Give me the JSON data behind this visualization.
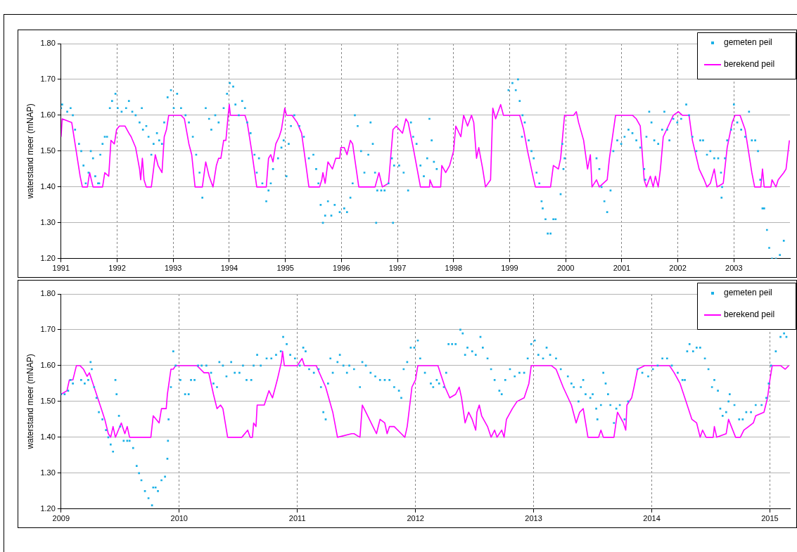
{
  "chart_data": [
    {
      "type": "line",
      "ylabel": "waterstand meer (mNAP)",
      "xlim": [
        1991,
        2004
      ],
      "xticks": [
        1991,
        1992,
        1993,
        1994,
        1995,
        1996,
        1997,
        1998,
        1999,
        2000,
        2001,
        2002,
        2003
      ],
      "ylim": [
        1.2,
        1.8
      ],
      "yticks": [
        {
          "value": 1.2,
          "label": "1.20"
        },
        {
          "value": 1.3,
          "label": "1.30"
        },
        {
          "value": 1.4,
          "label": "1.40"
        },
        {
          "value": 1.5,
          "label": "1.50"
        },
        {
          "value": 1.6,
          "label": "1.60"
        },
        {
          "value": 1.7,
          "label": "1.70"
        },
        {
          "value": 1.8,
          "label": "1.80"
        }
      ],
      "grid": true,
      "legend": "top right",
      "series": [
        {
          "name": "gemeten peil",
          "type": "scatter",
          "color": "#1ab0e6",
          "marker": "square",
          "x": [
            1991.0,
            1991.02,
            1991.11,
            1991.17,
            1991.21,
            1991.25,
            1991.32,
            1991.36,
            1991.4,
            1991.44,
            1991.49,
            1991.53,
            1991.57,
            1991.61,
            1991.66,
            1991.68,
            1991.7,
            1991.74,
            1991.78,
            1991.82,
            1991.87,
            1991.91,
            1991.97,
            1992.01,
            1992.08,
            1992.16,
            1992.21,
            1992.27,
            1992.33,
            1992.4,
            1992.44,
            1992.46,
            1992.52,
            1992.56,
            1992.61,
            1992.65,
            1992.71,
            1992.75,
            1992.8,
            1992.84,
            1992.9,
            1992.96,
            1993.01,
            1993.07,
            1993.14,
            1993.22,
            1993.28,
            1993.35,
            1993.41,
            1993.47,
            1993.52,
            1993.58,
            1993.64,
            1993.68,
            1993.75,
            1993.81,
            1993.9,
            1993.96,
            1994.01,
            1994.07,
            1994.11,
            1994.17,
            1994.23,
            1994.28,
            1994.32,
            1994.38,
            1994.45,
            1994.49,
            1994.53,
            1994.59,
            1994.66,
            1994.7,
            1994.74,
            1994.78,
            1994.87,
            1994.93,
            1994.97,
            1995.02,
            1995.06,
            1995.1,
            1995.16,
            1995.25,
            1995.33,
            1995.42,
            1995.5,
            1995.55,
            1995.59,
            1995.63,
            1995.67,
            1995.71,
            1995.76,
            1995.82,
            1995.88,
            1995.97,
            1996.05,
            1996.1,
            1996.16,
            1996.2,
            1996.24,
            1996.29,
            1996.35,
            1996.41,
            1996.48,
            1996.52,
            1996.56,
            1996.6,
            1996.62,
            1996.64,
            1996.71,
            1996.77,
            1996.84,
            1996.9,
            1996.92,
            1996.94,
            1997.03,
            1997.11,
            1997.19,
            1997.24,
            1997.28,
            1997.34,
            1997.41,
            1997.47,
            1997.53,
            1997.57,
            1997.61,
            1997.65,
            1997.7,
            1998.98,
            1999.05,
            1999.11,
            1999.15,
            1999.18,
            1999.22,
            1999.23,
            1999.27,
            1999.34,
            1999.39,
            1999.43,
            1999.48,
            1999.53,
            1999.57,
            1999.59,
            1999.64,
            1999.68,
            1999.73,
            1999.78,
            1999.82,
            1999.91,
            1999.94,
            1999.96,
            1999.98,
            2000.55,
            2000.6,
            2000.64,
            2000.69,
            2000.74,
            2000.8,
            2000.85,
            2000.92,
            2000.99,
            2001.05,
            2001.12,
            2001.19,
            2001.26,
            2001.33,
            2001.4,
            2001.42,
            2001.44,
            2001.49,
            2001.53,
            2001.58,
            2001.65,
            2001.72,
            2001.76,
            2001.81,
            2001.85,
            2001.92,
            2001.99,
            2002.06,
            2002.15,
            2002.2,
            2002.26,
            2002.33,
            2002.4,
            2002.45,
            2002.52,
            2002.58,
            2002.65,
            2002.72,
            2002.77,
            2002.78,
            2002.79,
            2002.84,
            2002.88,
            2002.95,
            2003.0,
            2003.06,
            2003.13,
            2003.2,
            2003.27,
            2003.32,
            2003.38,
            2003.43,
            2003.47,
            2003.51,
            2003.54,
            2003.59,
            2003.63,
            2003.68,
            2003.75,
            2003.82,
            2003.89
          ],
          "values": [
            1.62,
            1.63,
            1.61,
            1.62,
            1.6,
            1.56,
            1.52,
            1.5,
            1.46,
            1.41,
            1.44,
            1.5,
            1.48,
            1.43,
            1.41,
            1.41,
            1.49,
            1.52,
            1.54,
            1.54,
            1.62,
            1.64,
            1.66,
            1.62,
            1.61,
            1.62,
            1.64,
            1.61,
            1.6,
            1.58,
            1.62,
            1.56,
            1.57,
            1.54,
            1.49,
            1.52,
            1.55,
            1.53,
            1.52,
            1.58,
            1.65,
            1.67,
            1.62,
            1.66,
            1.62,
            1.6,
            1.58,
            1.54,
            1.49,
            1.44,
            1.37,
            1.62,
            1.59,
            1.56,
            1.6,
            1.58,
            1.62,
            1.66,
            1.69,
            1.68,
            1.63,
            1.6,
            1.64,
            1.62,
            1.58,
            1.55,
            1.49,
            1.44,
            1.48,
            1.41,
            1.36,
            1.39,
            1.41,
            1.45,
            1.48,
            1.51,
            1.53,
            1.43,
            1.52,
            1.57,
            1.6,
            1.57,
            1.54,
            1.48,
            1.49,
            1.45,
            1.41,
            1.35,
            1.3,
            1.32,
            1.36,
            1.32,
            1.35,
            1.33,
            1.34,
            1.33,
            1.37,
            1.41,
            1.6,
            1.57,
            1.5,
            1.44,
            1.49,
            1.58,
            1.52,
            1.44,
            1.3,
            1.39,
            1.39,
            1.39,
            1.41,
            1.48,
            1.3,
            1.46,
            1.46,
            1.44,
            1.39,
            1.58,
            1.54,
            1.52,
            1.46,
            1.43,
            1.48,
            1.59,
            1.53,
            1.47,
            1.45,
            1.67,
            1.69,
            1.67,
            1.7,
            1.64,
            1.54,
            1.6,
            1.58,
            1.53,
            1.5,
            1.48,
            1.44,
            1.41,
            1.36,
            1.34,
            1.31,
            1.27,
            1.27,
            1.31,
            1.31,
            1.38,
            1.52,
            1.45,
            1.48,
            1.48,
            1.45,
            1.4,
            1.36,
            1.33,
            1.39,
            1.5,
            1.53,
            1.52,
            1.54,
            1.56,
            1.55,
            1.53,
            1.51,
            1.45,
            1.42,
            1.54,
            1.61,
            1.58,
            1.53,
            1.52,
            1.56,
            1.61,
            1.56,
            1.53,
            1.59,
            1.58,
            1.59,
            1.63,
            1.6,
            1.54,
            1.5,
            1.53,
            1.53,
            1.49,
            1.5,
            1.48,
            1.48,
            1.44,
            1.37,
            1.4,
            1.48,
            1.53,
            1.56,
            1.63,
            1.58,
            1.56,
            1.54,
            1.61,
            1.53,
            1.53,
            1.5,
            1.42,
            1.34,
            1.34,
            1.28,
            1.23,
            1.2,
            1.2,
            1.21,
            1.25
          ]
        },
        {
          "name": "berekend peil",
          "type": "line",
          "color": "#ff00ff",
          "marker": "none",
          "line_style": "solid",
          "x": [
            1991.0,
            1991.02,
            1991.19,
            1991.25,
            1991.34,
            1991.38,
            1991.47,
            1991.51,
            1991.57,
            1991.74,
            1991.78,
            1991.85,
            1991.89,
            1991.95,
            1991.99,
            1992.04,
            1992.14,
            1992.21,
            1992.25,
            1992.33,
            1992.4,
            1992.42,
            1992.45,
            1992.48,
            1992.52,
            1992.61,
            1992.65,
            1992.68,
            1992.73,
            1992.8,
            1992.84,
            1992.88,
            1992.92,
            1993.14,
            1993.2,
            1993.28,
            1993.33,
            1993.39,
            1993.52,
            1993.58,
            1993.64,
            1993.71,
            1993.77,
            1993.81,
            1993.85,
            1993.9,
            1993.94,
            1993.98,
            1994.0,
            1994.02,
            1994.28,
            1994.32,
            1994.4,
            1994.49,
            1994.66,
            1994.7,
            1994.74,
            1994.78,
            1994.83,
            1994.89,
            1994.93,
            1994.99,
            1995.02,
            1995.12,
            1995.21,
            1995.29,
            1995.36,
            1995.42,
            1995.61,
            1995.65,
            1995.67,
            1995.71,
            1995.76,
            1995.84,
            1995.9,
            1995.97,
            1995.99,
            1996.05,
            1996.1,
            1996.16,
            1996.2,
            1996.31,
            1996.6,
            1996.67,
            1996.73,
            1996.84,
            1996.92,
            1996.98,
            1997.09,
            1997.15,
            1997.19,
            1997.28,
            1997.41,
            1997.57,
            1997.58,
            1997.63,
            1997.77,
            1997.79,
            1997.86,
            1997.93,
            1998.0,
            1998.04,
            1998.13,
            1998.18,
            1998.25,
            1998.32,
            1998.36,
            1998.41,
            1998.45,
            1998.52,
            1998.57,
            1998.66,
            1998.7,
            1998.75,
            1998.84,
            1998.89,
            1999.18,
            1999.25,
            1999.32,
            1999.43,
            1999.46,
            1999.73,
            1999.78,
            1999.87,
            1999.91,
            1999.98,
            2000.14,
            2000.19,
            2000.23,
            2000.32,
            2000.39,
            2000.44,
            2000.47,
            2000.55,
            2000.6,
            2000.74,
            2000.78,
            2000.89,
            2001.19,
            2001.26,
            2001.33,
            2001.4,
            2001.44,
            2001.51,
            2001.56,
            2001.6,
            2001.65,
            2001.69,
            2001.74,
            2001.83,
            2001.92,
            2002.01,
            2002.08,
            2002.2,
            2002.26,
            2002.38,
            2002.47,
            2002.52,
            2002.58,
            2002.65,
            2002.7,
            2002.81,
            2002.88,
            2002.97,
            2003.02,
            2003.11,
            2003.2,
            2003.32,
            2003.37,
            2003.48,
            2003.51,
            2003.54,
            2003.66,
            2003.68,
            2003.75,
            2003.79,
            2003.89,
            2003.93,
            2003.99
          ],
          "values": [
            1.54,
            1.59,
            1.58,
            1.52,
            1.43,
            1.4,
            1.4,
            1.44,
            1.4,
            1.4,
            1.44,
            1.43,
            1.53,
            1.52,
            1.56,
            1.57,
            1.57,
            1.55,
            1.54,
            1.51,
            1.45,
            1.42,
            1.48,
            1.42,
            1.4,
            1.4,
            1.45,
            1.49,
            1.46,
            1.44,
            1.54,
            1.56,
            1.6,
            1.6,
            1.59,
            1.52,
            1.49,
            1.4,
            1.4,
            1.47,
            1.43,
            1.4,
            1.46,
            1.48,
            1.48,
            1.53,
            1.53,
            1.6,
            1.63,
            1.6,
            1.6,
            1.58,
            1.5,
            1.4,
            1.4,
            1.48,
            1.49,
            1.47,
            1.52,
            1.54,
            1.56,
            1.62,
            1.6,
            1.6,
            1.58,
            1.55,
            1.47,
            1.4,
            1.4,
            1.42,
            1.44,
            1.41,
            1.47,
            1.45,
            1.48,
            1.48,
            1.51,
            1.51,
            1.49,
            1.53,
            1.52,
            1.4,
            1.4,
            1.44,
            1.4,
            1.41,
            1.56,
            1.57,
            1.55,
            1.59,
            1.58,
            1.51,
            1.4,
            1.4,
            1.42,
            1.4,
            1.4,
            1.46,
            1.44,
            1.46,
            1.5,
            1.57,
            1.54,
            1.6,
            1.57,
            1.6,
            1.58,
            1.48,
            1.51,
            1.45,
            1.4,
            1.42,
            1.62,
            1.59,
            1.63,
            1.6,
            1.6,
            1.56,
            1.5,
            1.42,
            1.4,
            1.4,
            1.46,
            1.45,
            1.48,
            1.6,
            1.6,
            1.61,
            1.58,
            1.53,
            1.45,
            1.49,
            1.4,
            1.42,
            1.4,
            1.42,
            1.48,
            1.6,
            1.6,
            1.59,
            1.57,
            1.42,
            1.4,
            1.43,
            1.4,
            1.43,
            1.4,
            1.45,
            1.54,
            1.57,
            1.6,
            1.61,
            1.6,
            1.6,
            1.53,
            1.45,
            1.42,
            1.4,
            1.41,
            1.45,
            1.4,
            1.41,
            1.51,
            1.58,
            1.6,
            1.6,
            1.56,
            1.44,
            1.4,
            1.4,
            1.45,
            1.4,
            1.4,
            1.42,
            1.4,
            1.42,
            1.44,
            1.45,
            1.53
          ]
        }
      ]
    },
    {
      "type": "line",
      "ylabel": "waterstand meer (mNAP)",
      "xlim": [
        2009,
        2015.17
      ],
      "xticks": [
        2009,
        2010,
        2011,
        2012,
        2013,
        2014,
        2015
      ],
      "ylim": [
        1.2,
        1.8
      ],
      "yticks": [
        {
          "value": 1.2,
          "label": "1.20"
        },
        {
          "value": 1.3,
          "label": "1.30"
        },
        {
          "value": 1.4,
          "label": "1.40"
        },
        {
          "value": 1.5,
          "label": "1.50"
        },
        {
          "value": 1.6,
          "label": "1.60"
        },
        {
          "value": 1.7,
          "label": "1.70"
        },
        {
          "value": 1.8,
          "label": "1.80"
        }
      ],
      "grid": true,
      "legend": "top right",
      "series": [
        {
          "name": "gemeten peil",
          "type": "scatter",
          "color": "#1ab0e6",
          "marker": "square",
          "x": [
            2009.0,
            2009.03,
            2009.06,
            2009.08,
            2009.1,
            2009.17,
            2009.2,
            2009.23,
            2009.25,
            2009.26,
            2009.28,
            2009.3,
            2009.32,
            2009.35,
            2009.38,
            2009.4,
            2009.42,
            2009.44,
            2009.46,
            2009.47,
            2009.49,
            2009.5,
            2009.53,
            2009.56,
            2009.58,
            2009.61,
            2009.64,
            2009.66,
            2009.68,
            2009.71,
            2009.74,
            2009.77,
            2009.78,
            2009.8,
            2009.82,
            2009.85,
            2009.88,
            2009.9,
            2009.905,
            2009.91,
            2009.93,
            2009.95,
            2009.97,
            2010.01,
            2010.05,
            2010.08,
            2010.1,
            2010.13,
            2010.16,
            2010.19,
            2010.23,
            2010.27,
            2010.29,
            2010.32,
            2010.34,
            2010.37,
            2010.4,
            2010.44,
            2010.47,
            2010.51,
            2010.54,
            2010.57,
            2010.61,
            2010.63,
            2010.66,
            2010.69,
            2010.74,
            2010.78,
            2010.82,
            2010.86,
            2010.88,
            2010.91,
            2010.94,
            2010.98,
            2011.02,
            2011.05,
            2011.07,
            2011.1,
            2011.14,
            2011.18,
            2011.2,
            2011.22,
            2011.24,
            2011.26,
            2011.28,
            2011.3,
            2011.34,
            2011.36,
            2011.39,
            2011.42,
            2011.44,
            2011.48,
            2011.53,
            2011.55,
            2011.58,
            2011.62,
            2011.66,
            2011.7,
            2011.74,
            2011.78,
            2011.82,
            2011.86,
            2011.88,
            2011.9,
            2011.93,
            2011.96,
            2011.99,
            2012.02,
            2012.04,
            2012.08,
            2012.13,
            2012.15,
            2012.18,
            2012.2,
            2012.24,
            2012.26,
            2012.28,
            2012.31,
            2012.34,
            2012.38,
            2012.4,
            2012.42,
            2012.44,
            2012.48,
            2012.51,
            2012.55,
            2012.57,
            2012.61,
            2012.64,
            2012.67,
            2012.71,
            2012.73,
            2012.76,
            2012.8,
            2012.84,
            2012.88,
            2012.92,
            2012.95,
            2012.98,
            2013.01,
            2013.04,
            2013.08,
            2013.11,
            2013.14,
            2013.19,
            2013.23,
            2013.29,
            2013.32,
            2013.34,
            2013.38,
            2013.4,
            2013.42,
            2013.44,
            2013.48,
            2013.5,
            2013.53,
            2013.54,
            2013.57,
            2013.59,
            2013.61,
            2013.63,
            2013.65,
            2013.68,
            2013.7,
            2013.73,
            2013.77,
            2013.8,
            2013.88,
            2013.92,
            2013.97,
            2014.01,
            2014.05,
            2014.09,
            2014.13,
            2014.17,
            2014.22,
            2014.26,
            2014.28,
            2014.3,
            2014.32,
            2014.35,
            2014.38,
            2014.41,
            2014.45,
            2014.48,
            2014.51,
            2014.53,
            2014.56,
            2014.58,
            2014.6,
            2014.63,
            2014.65,
            2014.66,
            2014.7,
            2014.74,
            2014.77,
            2014.8,
            2014.84,
            2014.88,
            2014.93,
            2014.97,
            2014.99,
            2015.01,
            2015.05,
            2015.09,
            2015.12,
            2015.14
          ],
          "values": [
            1.52,
            1.52,
            1.53,
            1.56,
            1.55,
            1.56,
            1.55,
            1.56,
            1.61,
            1.59,
            1.54,
            1.51,
            1.47,
            1.45,
            1.42,
            1.4,
            1.38,
            1.36,
            1.56,
            1.52,
            1.46,
            1.43,
            1.39,
            1.39,
            1.39,
            1.37,
            1.32,
            1.3,
            1.28,
            1.25,
            1.23,
            1.21,
            1.26,
            1.26,
            1.25,
            1.28,
            1.29,
            1.34,
            1.39,
            1.45,
            1.54,
            1.64,
            1.6,
            1.56,
            1.52,
            1.52,
            1.56,
            1.56,
            1.6,
            1.6,
            1.6,
            1.58,
            1.55,
            1.54,
            1.61,
            1.6,
            1.57,
            1.61,
            1.58,
            1.58,
            1.6,
            1.56,
            1.56,
            1.6,
            1.63,
            1.6,
            1.62,
            1.62,
            1.63,
            1.64,
            1.68,
            1.66,
            1.63,
            1.62,
            1.6,
            1.65,
            1.64,
            1.59,
            1.58,
            1.59,
            1.54,
            1.47,
            1.45,
            1.55,
            1.62,
            1.58,
            1.61,
            1.63,
            1.6,
            1.58,
            1.6,
            1.59,
            1.54,
            1.61,
            1.6,
            1.58,
            1.57,
            1.56,
            1.56,
            1.56,
            1.54,
            1.53,
            1.51,
            1.59,
            1.61,
            1.65,
            1.65,
            1.67,
            1.62,
            1.58,
            1.55,
            1.54,
            1.56,
            1.55,
            1.54,
            1.58,
            1.66,
            1.66,
            1.66,
            1.7,
            1.69,
            1.63,
            1.65,
            1.64,
            1.63,
            1.68,
            1.65,
            1.62,
            1.59,
            1.56,
            1.53,
            1.52,
            1.56,
            1.59,
            1.57,
            1.58,
            1.58,
            1.62,
            1.66,
            1.67,
            1.63,
            1.62,
            1.65,
            1.63,
            1.62,
            1.59,
            1.57,
            1.55,
            1.54,
            1.5,
            1.54,
            1.56,
            1.52,
            1.51,
            1.52,
            1.48,
            1.45,
            1.49,
            1.58,
            1.55,
            1.52,
            1.49,
            1.44,
            1.48,
            1.49,
            1.45,
            1.5,
            1.59,
            1.58,
            1.57,
            1.59,
            1.6,
            1.62,
            1.62,
            1.6,
            1.58,
            1.56,
            1.56,
            1.64,
            1.66,
            1.64,
            1.65,
            1.65,
            1.62,
            1.59,
            1.54,
            1.56,
            1.53,
            1.48,
            1.46,
            1.47,
            1.5,
            1.52,
            1.49,
            1.45,
            1.45,
            1.47,
            1.47,
            1.49,
            1.49,
            1.51,
            1.55,
            1.6,
            1.64,
            1.68,
            1.69,
            1.68
          ]
        },
        {
          "name": "berekend peil",
          "type": "line",
          "color": "#ff00ff",
          "marker": "none",
          "line_style": "solid",
          "x": [
            2009.0,
            2009.05,
            2009.07,
            2009.1,
            2009.13,
            2009.16,
            2009.19,
            2009.22,
            2009.24,
            2009.27,
            2009.3,
            2009.34,
            2009.37,
            2009.4,
            2009.42,
            2009.44,
            2009.46,
            2009.51,
            2009.54,
            2009.56,
            2009.58,
            2009.76,
            2009.78,
            2009.83,
            2009.85,
            2009.89,
            2009.9,
            2009.93,
            2009.95,
            2009.97,
            2010.03,
            2010.09,
            2010.15,
            2010.18,
            2010.21,
            2010.25,
            2010.29,
            2010.32,
            2010.35,
            2010.37,
            2010.41,
            2010.53,
            2010.58,
            2010.6,
            2010.62,
            2010.63,
            2010.65,
            2010.66,
            2010.72,
            2010.76,
            2010.79,
            2010.83,
            2010.865,
            2010.875,
            2010.89,
            2011.0,
            2011.04,
            2011.06,
            2011.16,
            2011.2,
            2011.24,
            2011.3,
            2011.34,
            2011.46,
            2011.48,
            2011.53,
            2011.55,
            2011.58,
            2011.64,
            2011.67,
            2011.7,
            2011.74,
            2011.76,
            2011.78,
            2011.82,
            2011.88,
            2011.91,
            2011.93,
            2011.97,
            2012.0,
            2012.02,
            2012.08,
            2012.13,
            2012.19,
            2012.21,
            2012.25,
            2012.29,
            2012.34,
            2012.37,
            2012.39,
            2012.42,
            2012.45,
            2012.48,
            2012.51,
            2012.52,
            2012.54,
            2012.56,
            2012.61,
            2012.64,
            2012.67,
            2012.69,
            2012.73,
            2012.75,
            2012.77,
            2012.82,
            2012.86,
            2012.92,
            2012.96,
            2012.98,
            2013.04,
            2013.09,
            2013.15,
            2013.19,
            2013.25,
            2013.32,
            2013.36,
            2013.39,
            2013.42,
            2013.46,
            2013.55,
            2013.57,
            2013.59,
            2013.68,
            2013.71,
            2013.76,
            2013.78,
            2013.79,
            2013.83,
            2013.85,
            2013.88,
            2013.94,
            2014.03,
            2014.15,
            2014.19,
            2014.24,
            2014.28,
            2014.34,
            2014.38,
            2014.41,
            2014.43,
            2014.46,
            2014.52,
            2014.53,
            2014.55,
            2014.63,
            2014.65,
            2014.71,
            2014.75,
            2014.78,
            2014.82,
            2014.86,
            2014.88,
            2014.95,
            2014.98,
            2015.0,
            2015.02,
            2015.09,
            2015.13,
            2015.16
          ],
          "values": [
            1.52,
            1.53,
            1.56,
            1.56,
            1.6,
            1.6,
            1.59,
            1.57,
            1.58,
            1.55,
            1.52,
            1.48,
            1.45,
            1.41,
            1.4,
            1.43,
            1.4,
            1.44,
            1.41,
            1.43,
            1.4,
            1.4,
            1.46,
            1.44,
            1.48,
            1.48,
            1.52,
            1.59,
            1.59,
            1.6,
            1.6,
            1.6,
            1.6,
            1.59,
            1.58,
            1.58,
            1.52,
            1.48,
            1.49,
            1.48,
            1.4,
            1.4,
            1.42,
            1.4,
            1.4,
            1.44,
            1.43,
            1.49,
            1.49,
            1.53,
            1.51,
            1.56,
            1.61,
            1.64,
            1.6,
            1.6,
            1.62,
            1.6,
            1.6,
            1.57,
            1.54,
            1.47,
            1.4,
            1.41,
            1.41,
            1.4,
            1.49,
            1.47,
            1.43,
            1.41,
            1.45,
            1.44,
            1.41,
            1.43,
            1.43,
            1.41,
            1.4,
            1.43,
            1.54,
            1.56,
            1.6,
            1.6,
            1.6,
            1.6,
            1.58,
            1.54,
            1.51,
            1.52,
            1.54,
            1.51,
            1.44,
            1.47,
            1.45,
            1.42,
            1.47,
            1.49,
            1.46,
            1.43,
            1.4,
            1.42,
            1.4,
            1.42,
            1.4,
            1.45,
            1.48,
            1.5,
            1.51,
            1.55,
            1.6,
            1.6,
            1.6,
            1.6,
            1.59,
            1.54,
            1.49,
            1.44,
            1.47,
            1.48,
            1.4,
            1.4,
            1.42,
            1.4,
            1.4,
            1.47,
            1.44,
            1.42,
            1.49,
            1.51,
            1.54,
            1.59,
            1.6,
            1.6,
            1.6,
            1.58,
            1.55,
            1.51,
            1.45,
            1.44,
            1.4,
            1.42,
            1.4,
            1.4,
            1.43,
            1.4,
            1.41,
            1.45,
            1.4,
            1.4,
            1.42,
            1.43,
            1.44,
            1.46,
            1.47,
            1.51,
            1.56,
            1.6,
            1.6,
            1.59,
            1.6
          ]
        }
      ]
    }
  ]
}
